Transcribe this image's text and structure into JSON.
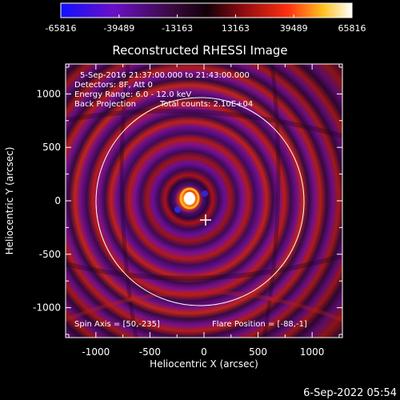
{
  "colorbar": {
    "tick_labels": [
      "-65816",
      "-39489",
      "-13163",
      "13163",
      "39489",
      "65816"
    ],
    "colormap": "blue-purple-red-yellow-white"
  },
  "plot": {
    "title": "Reconstructed RHESSI Image",
    "xlabel": "Heliocentric X (arcsec)",
    "ylabel": "Heliocentric Y (arcsec)",
    "x_ticks": [
      "-1000",
      "-500",
      "0",
      "500",
      "1000"
    ],
    "y_ticks": [
      "-1000",
      "-500",
      "0",
      "500",
      "1000"
    ],
    "x_range": [
      -1280,
      1280
    ],
    "y_range": [
      -1280,
      1280
    ],
    "annotations": {
      "time": "5-Sep-2016 21:37:00.000 to 21:43:00.000",
      "detectors": "Detectors: 8F, Att 0",
      "energy": "Energy Range: 6.0 - 12.0 keV",
      "method": "Back Projection",
      "counts": "Total counts: 2.10E+04",
      "spin_axis": "Spin Axis = [50,-235]",
      "flare_position": "Flare Position = [-88,-1]"
    },
    "colors": {
      "background": "#000000",
      "text": "#ffffff",
      "limb": "#ffffff"
    }
  },
  "footer": {
    "timestamp": "6-Sep-2022 05:54"
  }
}
